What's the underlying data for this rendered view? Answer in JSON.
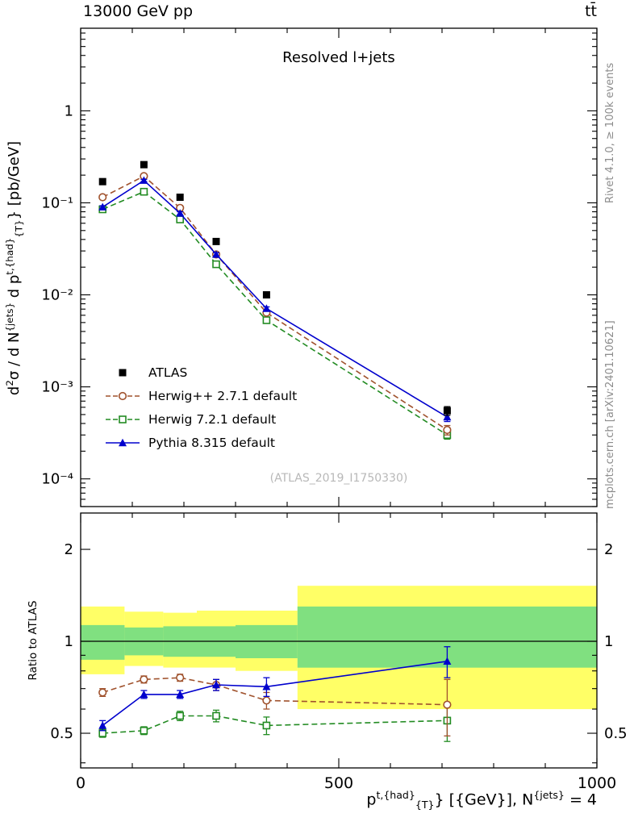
{
  "header": {
    "left": "13000 GeV pp",
    "right": "tt̄"
  },
  "plot": {
    "title": "Resolved l+jets",
    "watermark": "(ATLAS_2019_I1750330)"
  },
  "side_notes": {
    "top": "Rivet 4.1.0, ≥ 100k events",
    "bottom": "mcplots.cern.ch [arXiv:2401.10621]"
  },
  "labels": {
    "ratio": "Ratio to ATLAS",
    "y_rich": [
      {
        "t": "d"
      },
      {
        "t": "2",
        "s": "sup"
      },
      {
        "t": "σ / d N"
      },
      {
        "t": "{jets}",
        "s": "sup"
      },
      {
        "t": " d p"
      },
      {
        "t": "t,{had}",
        "s": "sup"
      },
      {
        "t": "{T}",
        "s": "sub"
      },
      {
        "t": "} [pb/GeV]"
      }
    ],
    "x_rich": [
      {
        "t": "p"
      },
      {
        "t": "t,{had}",
        "s": "sup"
      },
      {
        "t": "{T}",
        "s": "sub"
      },
      {
        "t": "} [{GeV}], N"
      },
      {
        "t": "{jets}",
        "s": "sup"
      },
      {
        "t": " = 4"
      }
    ]
  },
  "chart_data": {
    "type": "line",
    "title": "Resolved l+jets",
    "xlabel": "pT^{t,had} [GeV], N^{jets} = 4",
    "ylabel": "d2sigma / dN^{jets} dpT^{t,had} [pb/GeV]",
    "legend_position": "inside-left-middle",
    "xlim": [
      0,
      1000
    ],
    "xticks": [
      0,
      500,
      1000
    ],
    "xtick_labels": [
      "0",
      "500",
      "1000"
    ],
    "x_minor_step": 100,
    "x": [
      42.5,
      122.5,
      192.5,
      262.5,
      360,
      710
    ],
    "bin_edges": [
      0,
      85,
      160,
      225,
      300,
      420,
      1000
    ],
    "top_panel": {
      "yscale": "log",
      "ylim": [
        5e-05,
        7.9
      ],
      "yticks": [
        1,
        0.1,
        0.01,
        0.001,
        0.0001
      ],
      "ytick_labels": [
        "1",
        "10⁻¹",
        "10⁻²",
        "10⁻³",
        "10⁻⁴"
      ],
      "series": [
        {
          "name": "ATLAS",
          "color": "#000000",
          "marker": "square-filled",
          "line": "none",
          "values": [
            0.17,
            0.26,
            0.115,
            0.038,
            0.01,
            0.00055
          ],
          "errors": [
            0.008,
            0.012,
            0.006,
            0.002,
            0.0006,
            6e-05
          ]
        },
        {
          "name": "Herwig++ 2.7.1 default",
          "color": "#a0522d",
          "marker": "circle-open",
          "line": "dashed",
          "values": [
            0.115,
            0.195,
            0.088,
            0.0275,
            0.0064,
            0.00034
          ],
          "errors": [
            0.004,
            0.006,
            0.003,
            0.0012,
            0.0003,
            4e-05
          ]
        },
        {
          "name": "Herwig 7.2.1 default",
          "color": "#228b22",
          "marker": "square-open",
          "line": "dashed",
          "values": [
            0.085,
            0.132,
            0.066,
            0.0215,
            0.0053,
            0.0003
          ],
          "errors": [
            0.003,
            0.004,
            0.002,
            0.0009,
            0.0002,
            3e-05
          ]
        },
        {
          "name": "Pythia 8.315 default",
          "color": "#0000cd",
          "marker": "triangle-filled",
          "line": "solid",
          "values": [
            0.09,
            0.175,
            0.077,
            0.0275,
            0.0071,
            0.00047
          ],
          "errors": [
            0.003,
            0.005,
            0.003,
            0.0012,
            0.0003,
            5e-05
          ]
        }
      ]
    },
    "ratio_panel": {
      "yscale": "log",
      "ylim": [
        0.385,
        2.63
      ],
      "yticks": [
        0.5,
        1,
        2
      ],
      "ytick_labels": [
        "0.5",
        "1",
        "2"
      ],
      "yticks_minor": [
        0.4,
        0.6,
        0.7,
        0.8,
        0.9
      ],
      "reference_line": 1,
      "bands": {
        "yellow": {
          "color": "#ffff66",
          "ranges": [
            [
              0.78,
              1.3
            ],
            [
              0.83,
              1.25
            ],
            [
              0.82,
              1.24
            ],
            [
              0.82,
              1.26
            ],
            [
              0.8,
              1.26
            ],
            [
              0.6,
              1.52
            ]
          ]
        },
        "green": {
          "color": "#80e080",
          "ranges": [
            [
              0.87,
              1.13
            ],
            [
              0.9,
              1.11
            ],
            [
              0.89,
              1.12
            ],
            [
              0.89,
              1.12
            ],
            [
              0.88,
              1.13
            ],
            [
              0.82,
              1.3
            ]
          ]
        }
      },
      "series": [
        {
          "name": "Herwig++ 2.7.1 default",
          "color": "#a0522d",
          "marker": "circle-open",
          "line": "dashed",
          "values": [
            0.68,
            0.75,
            0.76,
            0.72,
            0.64,
            0.62
          ],
          "errors": [
            0.02,
            0.02,
            0.02,
            0.03,
            0.04,
            0.13
          ]
        },
        {
          "name": "Herwig 7.2.1 default",
          "color": "#228b22",
          "marker": "square-open",
          "line": "dashed",
          "values": [
            0.5,
            0.51,
            0.57,
            0.57,
            0.53,
            0.55
          ],
          "errors": [
            0.015,
            0.015,
            0.02,
            0.025,
            0.035,
            0.08
          ]
        },
        {
          "name": "Pythia 8.315 default",
          "color": "#0000cd",
          "marker": "triangle-filled",
          "line": "solid",
          "values": [
            0.53,
            0.67,
            0.67,
            0.72,
            0.71,
            0.86
          ],
          "errors": [
            0.02,
            0.02,
            0.02,
            0.03,
            0.05,
            0.1
          ]
        }
      ]
    }
  }
}
